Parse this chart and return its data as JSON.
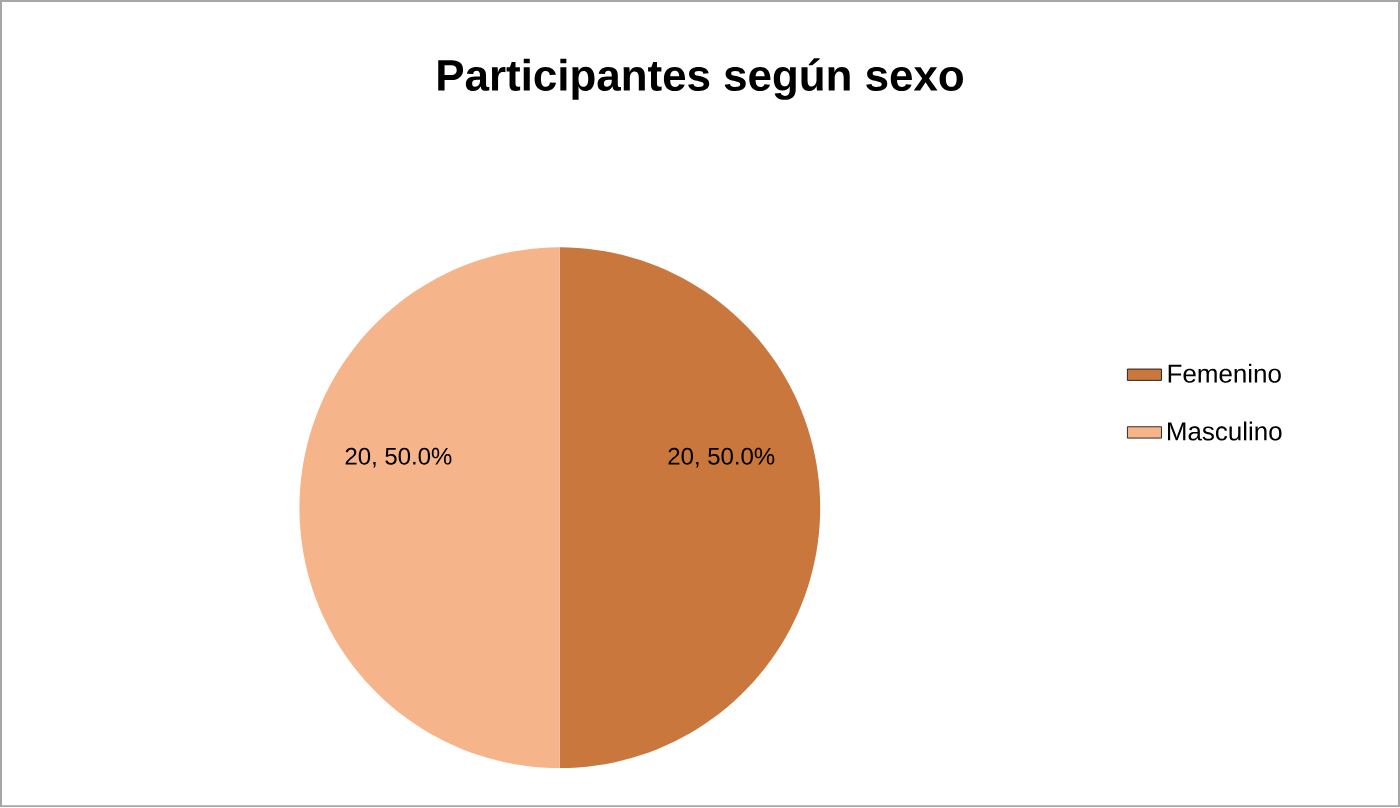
{
  "chart_data": {
    "type": "pie",
    "title": "Participantes según sexo",
    "categories": [
      "Femenino",
      "Masculino"
    ],
    "values": [
      20,
      20
    ],
    "value_labels": [
      "20, 50.0%",
      "20, 50.0%"
    ],
    "colors": [
      "#c9773c",
      "#f5b48a"
    ],
    "legend": "right"
  }
}
